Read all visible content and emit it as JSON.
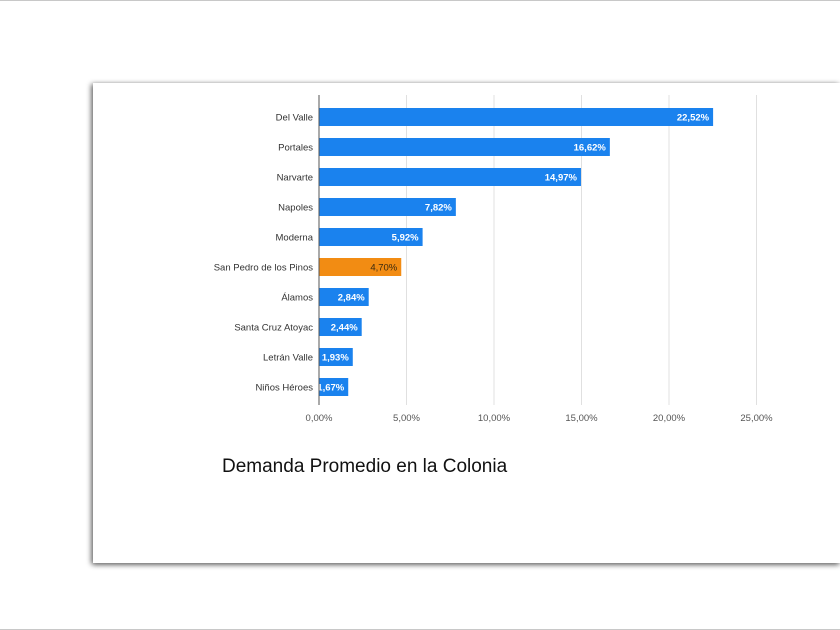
{
  "chart_data": {
    "type": "bar",
    "orientation": "horizontal",
    "caption": "Demanda Promedio en la Colonia",
    "categories": [
      "Del Valle",
      "Portales",
      "Narvarte",
      "Napoles",
      "Moderna",
      "San Pedro de los Pinos",
      "Álamos",
      "Santa Cruz Atoyac",
      "Letrán Valle",
      "Niños Héroes"
    ],
    "values": [
      22.52,
      16.62,
      14.97,
      7.82,
      5.92,
      4.7,
      2.84,
      2.44,
      1.93,
      1.67
    ],
    "value_labels": [
      "22,52%",
      "16,62%",
      "14,97%",
      "7,82%",
      "5,92%",
      "4,70%",
      "2,84%",
      "2,44%",
      "1,93%",
      "1,67%"
    ],
    "highlight_index": 5,
    "xlim": [
      0,
      25
    ],
    "xticks": [
      0,
      5,
      10,
      15,
      20,
      25
    ],
    "xtick_labels": [
      "0,00%",
      "5,00%",
      "10,00%",
      "15,00%",
      "20,00%",
      "25,00%"
    ],
    "grid": true,
    "colors": {
      "bar": "#1a82ee",
      "highlight": "#f28c13",
      "grid": "#e0e0e0",
      "axis": "#555555"
    }
  }
}
